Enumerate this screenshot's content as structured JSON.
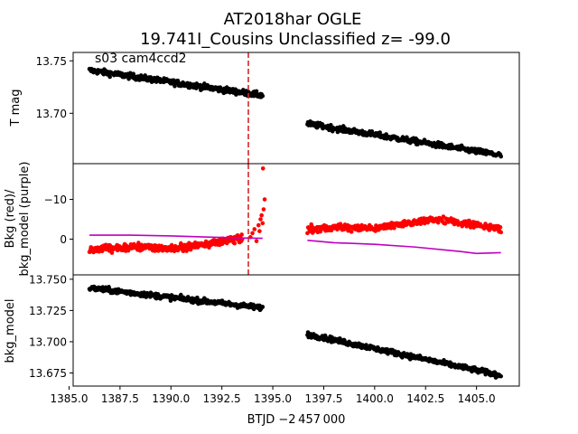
{
  "figure": {
    "title_line1": "AT2018har  OGLE",
    "title_line2": "19.741I_Cousins Unclassified z= -99.0",
    "annotation": "s03 cam4ccd2",
    "xlabel": "BTJD −2 457 000"
  },
  "chart_data": [
    {
      "type": "scatter",
      "panel": "top",
      "ylabel": "T mag",
      "y_inverted": true,
      "xlim": [
        1385.2,
        1407.1
      ],
      "ylim": [
        13.758,
        13.652
      ],
      "yticks": [
        13.7,
        13.75
      ],
      "ytick_labels": [
        "13.70",
        "13.75"
      ],
      "vline_x": 1393.8,
      "vline_color": "#d62728",
      "marker_color": "#000000",
      "segments": [
        {
          "x": [
            1386.0,
            1394.5
          ],
          "y": [
            13.741,
            13.717
          ]
        },
        {
          "x": [
            1396.7,
            1406.2
          ],
          "y": [
            13.69,
            13.66
          ]
        }
      ]
    },
    {
      "type": "line+scatter",
      "panel": "middle",
      "ylabel_line1": "Bkg (red)/",
      "ylabel_line2": "bkg_model (purple)",
      "xlim": [
        1385.2,
        1407.1
      ],
      "ylim": [
        -19,
        9
      ],
      "yticks": [
        0,
        -10
      ],
      "ytick_labels": [
        "0",
        "−10"
      ],
      "vline_x": 1393.8,
      "bkg_color": "#ff0000",
      "model_color": "#bf00bf",
      "model_line": {
        "x": [
          1386.0,
          1388.0,
          1390.0,
          1392.0,
          1393.5,
          1394.5,
          1396.7,
          1398.0,
          1400.0,
          1402.0,
          1404.0,
          1405.0,
          1406.2
        ],
        "y": [
          -1.0,
          -1.0,
          -0.8,
          -0.5,
          -0.3,
          -0.2,
          0.3,
          0.9,
          1.3,
          2.0,
          3.0,
          3.6,
          3.4
        ]
      },
      "bkg_segments": [
        {
          "x": [
            1386.0,
            1388.5,
            1390.0,
            1392.0,
            1393.5
          ],
          "y": [
            2.5,
            2.0,
            2.5,
            1.0,
            0.0
          ]
        },
        {
          "x": [
            1396.7,
            1398.5,
            1400.0,
            1401.5,
            1403.0,
            1404.5,
            1406.2
          ],
          "y": [
            -2.5,
            -3.0,
            -2.5,
            -4.0,
            -5.0,
            -4.0,
            -2.5
          ]
        }
      ],
      "bkg_outliers": {
        "x": [
          1393.9,
          1394.0,
          1394.1,
          1394.2,
          1394.3,
          1394.35,
          1394.4,
          1394.45,
          1394.5,
          1394.55,
          1394.6,
          1394.52
        ],
        "y": [
          -0.5,
          -1.5,
          -2.5,
          0.5,
          -3.5,
          -2.0,
          -5.0,
          -6.0,
          -4.0,
          -7.5,
          -10.0,
          -17.8
        ]
      }
    },
    {
      "type": "scatter",
      "panel": "bottom",
      "ylabel": "bkg_model",
      "y_inverted": true,
      "xlim": [
        1385.2,
        1407.1
      ],
      "ylim": [
        13.7535,
        13.6645
      ],
      "yticks": [
        13.675,
        13.7,
        13.725,
        13.75
      ],
      "ytick_labels": [
        "13.675",
        "13.700",
        "13.725",
        "13.750"
      ],
      "xticks": [
        1385.0,
        1387.5,
        1390.0,
        1392.5,
        1395.0,
        1397.5,
        1400.0,
        1402.5,
        1405.0
      ],
      "xtick_labels": [
        "1385.0",
        "1387.5",
        "1390.0",
        "1392.5",
        "1395.0",
        "1397.5",
        "1400.0",
        "1402.5",
        "1405.0"
      ],
      "marker_color": "#000000",
      "segments": [
        {
          "x": [
            1386.0,
            1394.5
          ],
          "y": [
            13.743,
            13.727
          ]
        },
        {
          "x": [
            1396.7,
            1406.2
          ],
          "y": [
            13.706,
            13.673
          ]
        }
      ]
    }
  ]
}
